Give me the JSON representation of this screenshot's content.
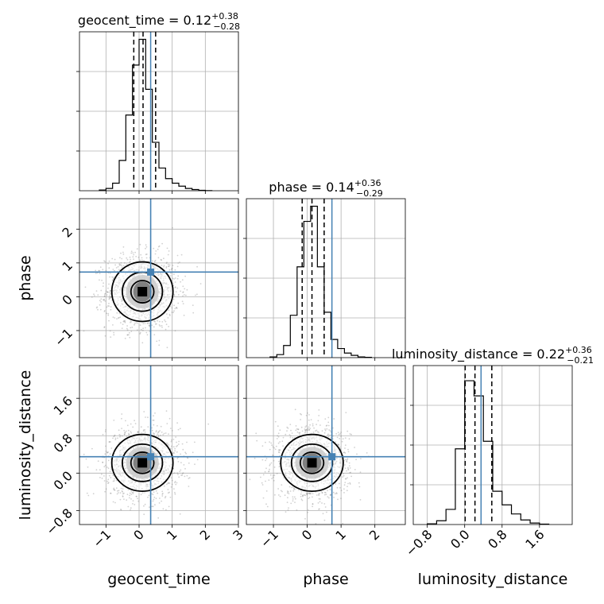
{
  "chart_data": {
    "type": "corner",
    "parameters": [
      "geocent_time",
      "phase",
      "luminosity_distance"
    ],
    "truth_color": "#4682b4",
    "grid": true,
    "panels": [
      {
        "kind": "hist",
        "param": "geocent_time",
        "title_name": "geocent_time",
        "median": "0.12",
        "plus": "+0.38",
        "minus": "−0.28",
        "xlim": [
          -1.8,
          3.0
        ],
        "bins": [
          -1.2,
          -1.0,
          -0.8,
          -0.6,
          -0.4,
          -0.2,
          0.0,
          0.2,
          0.4,
          0.6,
          0.8,
          1.0,
          1.2,
          1.4,
          1.6,
          1.8,
          2.0,
          2.2
        ],
        "counts": [
          0.005,
          0.015,
          0.05,
          0.2,
          0.5,
          0.83,
          1.0,
          0.67,
          0.32,
          0.15,
          0.08,
          0.05,
          0.03,
          0.015,
          0.008,
          0.003,
          0.001
        ],
        "quantiles": [
          -0.16,
          0.12,
          0.5
        ],
        "truth": 0.35
      },
      {
        "kind": "hist",
        "param": "phase",
        "title_name": "phase",
        "median": "0.14",
        "plus": "+0.36",
        "minus": "−0.29",
        "xlim": [
          -1.8,
          2.9
        ],
        "bins": [
          -1.1,
          -0.9,
          -0.7,
          -0.5,
          -0.3,
          -0.1,
          0.1,
          0.3,
          0.5,
          0.7,
          0.9,
          1.1,
          1.3,
          1.5,
          1.7,
          1.9
        ],
        "counts": [
          0.005,
          0.02,
          0.08,
          0.28,
          0.6,
          0.9,
          1.0,
          0.6,
          0.3,
          0.12,
          0.06,
          0.03,
          0.015,
          0.005,
          0.002
        ],
        "quantiles": [
          -0.15,
          0.14,
          0.5
        ],
        "truth": 0.73
      },
      {
        "kind": "hist",
        "param": "luminosity_distance",
        "title_name": "luminosity_distance",
        "median": "0.22",
        "plus": "+0.36",
        "minus": "−0.21",
        "xlim": [
          -1.1,
          2.3
        ],
        "bins": [
          -0.8,
          -0.6,
          -0.4,
          -0.2,
          0.0,
          0.2,
          0.4,
          0.6,
          0.8,
          1.0,
          1.2,
          1.4,
          1.6,
          1.8
        ],
        "counts": [
          0.005,
          0.025,
          0.1,
          0.5,
          0.95,
          0.85,
          0.55,
          0.22,
          0.13,
          0.07,
          0.03,
          0.01,
          0.003
        ],
        "quantiles": [
          0.01,
          0.22,
          0.58
        ],
        "truth": 0.35
      },
      {
        "kind": "2d",
        "xparam": "geocent_time",
        "yparam": "phase",
        "xlim": [
          -1.8,
          3.0
        ],
        "ylim": [
          -1.8,
          2.9
        ],
        "center": [
          0.1,
          0.15
        ],
        "spread": [
          0.55,
          0.55
        ],
        "truth": [
          0.35,
          0.73
        ]
      },
      {
        "kind": "2d",
        "xparam": "geocent_time",
        "yparam": "luminosity_distance",
        "xlim": [
          -1.8,
          3.0
        ],
        "ylim": [
          -1.1,
          2.3
        ],
        "center": [
          0.1,
          0.22
        ],
        "spread": [
          0.55,
          0.38
        ],
        "truth": [
          0.35,
          0.35
        ]
      },
      {
        "kind": "2d",
        "xparam": "phase",
        "yparam": "luminosity_distance",
        "xlim": [
          -1.8,
          2.9
        ],
        "ylim": [
          -1.1,
          2.3
        ],
        "center": [
          0.14,
          0.22
        ],
        "spread": [
          0.55,
          0.38
        ],
        "truth": [
          0.73,
          0.35
        ]
      }
    ],
    "ticks": {
      "geocent_time": [
        -1,
        0,
        1,
        2,
        3
      ],
      "phase": [
        -1,
        0,
        1,
        2
      ],
      "luminosity_distance": [
        -0.8,
        0.0,
        0.8,
        1.6
      ]
    },
    "tick_labels": {
      "geocent_time": [
        "−1",
        "0",
        "1",
        "2",
        "3"
      ],
      "phase": [
        "−1",
        "0",
        "1",
        "2"
      ],
      "luminosity_distance": [
        "−0.8",
        "0.0",
        "0.8",
        "1.6"
      ]
    },
    "axis_labels": {
      "x": [
        "geocent_time",
        "phase",
        "luminosity_distance"
      ],
      "y": [
        "phase",
        "luminosity_distance"
      ]
    }
  }
}
